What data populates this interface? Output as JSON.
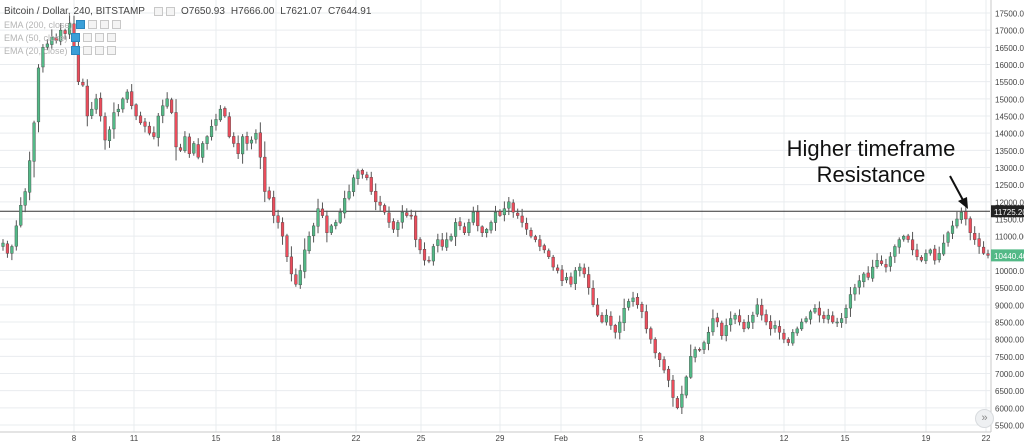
{
  "header": {
    "symbol": "Bitcoin / Dollar, 240, BITSTAMP",
    "open": "O7650.93",
    "high": "H7666.00",
    "low": "L7621.07",
    "close": "C7644.91",
    "ema_rows": [
      "EMA (200, close)",
      "EMA (50, close)",
      "EMA (20, close)"
    ]
  },
  "annotation": {
    "line1": "Higher timeframe",
    "line2": "Resistance"
  },
  "price_badges": {
    "resistance": "11725.20",
    "last": "10440.40"
  },
  "colors": {
    "up": "#53b987",
    "down": "#eb4d5c",
    "wick": "#555555",
    "grid": "#e9ecef",
    "resistance_line": "#333333",
    "last_badge": "#53b987",
    "resistance_badge": "#222222"
  },
  "icons": {
    "scroll": "double-chevron-right-icon"
  },
  "chart_data": {
    "type": "candlestick",
    "title": "Bitcoin / Dollar, 240, BITSTAMP",
    "ylim": [
      5500,
      17750
    ],
    "y_ticks": [
      "17500.00",
      "17000.00",
      "16500.00",
      "16000.00",
      "15500.00",
      "15000.00",
      "14500.00",
      "14000.00",
      "13500.00",
      "13000.00",
      "12500.00",
      "12000.00",
      "11500.00",
      "11000.00",
      "10500.00",
      "10000.00",
      "9500.00",
      "9000.00",
      "8500.00",
      "8000.00",
      "7500.00",
      "7000.00",
      "6500.00",
      "6000.00",
      "5500.00"
    ],
    "x_ticks": [
      "8",
      "11",
      "15",
      "18",
      "22",
      "25",
      "29",
      "Feb",
      "5",
      "8",
      "12",
      "15",
      "19",
      "22"
    ],
    "resistance_level": 11725.2,
    "last_price": 10440.4,
    "close_path": [
      10800,
      10500,
      10700,
      11300,
      11900,
      12300,
      13200,
      14300,
      15900,
      16500,
      16600,
      16800,
      16700,
      17000,
      16900,
      17200,
      16500,
      15500,
      15400,
      14500,
      14700,
      15000,
      14500,
      13800,
      14100,
      14600,
      14700,
      15000,
      15200,
      14800,
      14500,
      14300,
      14200,
      14000,
      13900,
      14500,
      14800,
      15000,
      14600,
      13600,
      13500,
      13900,
      13400,
      13700,
      13300,
      13700,
      13900,
      14200,
      14400,
      14700,
      14500,
      13900,
      13700,
      13400,
      13900,
      13700,
      13800,
      14000,
      13300,
      12300,
      12100,
      11600,
      11400,
      11000,
      10400,
      9900,
      9600,
      10000,
      10600,
      11000,
      11300,
      11800,
      11600,
      11100,
      11300,
      11400,
      11700,
      12100,
      12300,
      12700,
      12900,
      12800,
      12700,
      12300,
      12000,
      11900,
      11700,
      11400,
      11200,
      11400,
      11700,
      11600,
      11600,
      10900,
      10600,
      10300,
      10300,
      10700,
      10900,
      10700,
      10900,
      11000,
      11400,
      11300,
      11100,
      11400,
      11700,
      11300,
      11100,
      11200,
      11400,
      11700,
      11600,
      11800,
      12000,
      11700,
      11600,
      11400,
      11200,
      11000,
      10900,
      10700,
      10600,
      10400,
      10100,
      10000,
      9700,
      9800,
      9600,
      10000,
      10100,
      9900,
      9500,
      9000,
      8700,
      8500,
      8700,
      8400,
      8200,
      8500,
      8900,
      9100,
      9200,
      9000,
      8800,
      8300,
      8000,
      7600,
      7400,
      7100,
      6800,
      6300,
      6000,
      6400,
      6900,
      7500,
      7700,
      7700,
      7900,
      8200,
      8600,
      8500,
      8100,
      8400,
      8600,
      8700,
      8500,
      8300,
      8500,
      8700,
      9000,
      8700,
      8500,
      8300,
      8400,
      8200,
      8000,
      7900,
      8200,
      8300,
      8500,
      8600,
      8800,
      8900,
      8700,
      8600,
      8700,
      8500,
      8500,
      8600,
      8900,
      9300,
      9500,
      9700,
      9900,
      9800,
      10100,
      10300,
      10200,
      10100,
      10400,
      10700,
      10900,
      11000,
      10900,
      10600,
      10400,
      10300,
      10500,
      10600,
      10300,
      10500,
      10800,
      11100,
      11300,
      11500,
      11700,
      11500,
      11100,
      10900,
      10700,
      10500,
      10440
    ]
  }
}
